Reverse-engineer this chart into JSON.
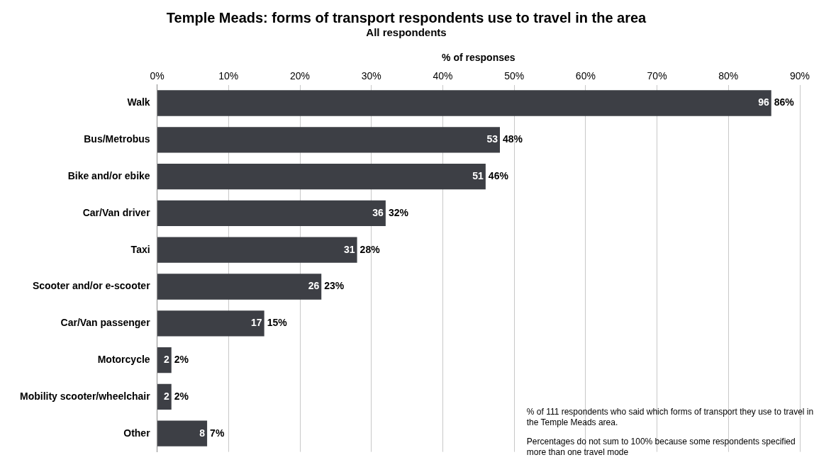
{
  "chart_data": {
    "type": "bar",
    "orientation": "horizontal",
    "title": "Temple Meads: forms of transport respondents use to travel in the area",
    "subtitle": "All respondents",
    "xlabel": "% of responses",
    "categories": [
      "Walk",
      "Bus/Metrobus",
      "Bike and/or ebike",
      "Car/Van driver",
      "Taxi",
      "Scooter and/or e-scooter",
      "Car/Van passenger",
      "Motorcycle",
      "Mobility scooter/wheelchair",
      "Other"
    ],
    "values": [
      86,
      48,
      46,
      32,
      28,
      23,
      15,
      2,
      2,
      7
    ],
    "value_labels": [
      "86%",
      "48%",
      "46%",
      "32%",
      "28%",
      "23%",
      "15%",
      "2%",
      "2%",
      "7%"
    ],
    "color": "#3d3f45",
    "xlim": [
      0,
      90
    ],
    "xticks": [
      {
        "value": 0,
        "label": "0%"
      },
      {
        "value": 10,
        "label": "10%"
      },
      {
        "value": 20,
        "label": "20%"
      },
      {
        "value": 30,
        "label": "30%"
      },
      {
        "value": 40,
        "label": "40%"
      },
      {
        "value": 50,
        "label": "50%"
      },
      {
        "value": 60,
        "label": "60%"
      },
      {
        "value": 70,
        "label": "70%"
      },
      {
        "value": 80,
        "label": "80%"
      },
      {
        "value": 90,
        "label": "90%"
      }
    ],
    "grid": "x",
    "legend": false,
    "annotations": [
      {
        "text": "96",
        "x": 86,
        "y": "Walk"
      },
      {
        "text": "53",
        "x": 48,
        "y": "Bus/Metrobus"
      },
      {
        "text": "51",
        "x": 46,
        "y": "Bike and/or ebike"
      },
      {
        "text": "36",
        "x": 32,
        "y": "Car/Van driver"
      },
      {
        "text": "31",
        "x": 28,
        "y": "Taxi"
      },
      {
        "text": "26",
        "x": 23,
        "y": "Scooter and/or e-scooter"
      },
      {
        "text": "17",
        "x": 15,
        "y": "Car/Van passenger"
      },
      {
        "text": "2",
        "x": 2,
        "y": "Motorcycle"
      },
      {
        "text": "2",
        "x": 2,
        "y": "Mobility scooter/wheelchair"
      },
      {
        "text": "8",
        "x": 7,
        "y": "Other"
      },
      "% of 111 respondents who said which forms of transport they use to travel in the Temple Meads area.",
      "Percentages do not sum to 100% because some respondents specified more than one travel mode"
    ]
  }
}
